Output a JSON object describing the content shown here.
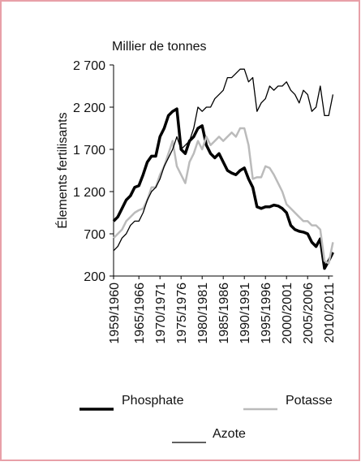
{
  "chart_data": {
    "type": "line",
    "y_label": "Millier de tonnes",
    "y_axis_title": "Élements fertilisants",
    "categories": [
      "1959/1960",
      null,
      null,
      null,
      null,
      null,
      "1965/1966",
      null,
      null,
      null,
      null,
      "1970/1971",
      null,
      null,
      null,
      null,
      "1975/1976",
      null,
      null,
      null,
      null,
      "1980/1981",
      null,
      null,
      null,
      null,
      "1985/1986",
      null,
      null,
      null,
      null,
      "1990/1991",
      null,
      null,
      null,
      null,
      "1995/1996",
      null,
      null,
      null,
      null,
      "2000/2001",
      null,
      null,
      null,
      null,
      "2005/2006",
      null,
      null,
      null,
      null,
      "2010/2011",
      null
    ],
    "series": [
      {
        "name": "Phosphate",
        "color": "#000000",
        "values": [
          850,
          900,
          1000,
          1100,
          1150,
          1250,
          1270,
          1400,
          1550,
          1620,
          1620,
          1850,
          1950,
          2100,
          2150,
          2180,
          1700,
          1650,
          1800,
          1850,
          1950,
          1980,
          1750,
          1650,
          1600,
          1650,
          1550,
          1450,
          1420,
          1400,
          1450,
          1480,
          1350,
          1250,
          1020,
          1000,
          1020,
          1020,
          1040,
          1030,
          1000,
          950,
          800,
          750,
          730,
          720,
          700,
          600,
          550,
          640,
          290,
          380,
          480
        ]
      },
      {
        "name": "Potasse",
        "color": "#bbbbbb",
        "values": [
          650,
          700,
          750,
          850,
          900,
          950,
          980,
          1000,
          1100,
          1250,
          1250,
          1400,
          1500,
          1650,
          1800,
          1500,
          1400,
          1300,
          1550,
          1650,
          1800,
          1700,
          1850,
          1750,
          1800,
          1850,
          1800,
          1850,
          1900,
          1850,
          1950,
          1950,
          1750,
          1350,
          1370,
          1370,
          1500,
          1480,
          1400,
          1300,
          1200,
          1050,
          1000,
          950,
          900,
          850,
          850,
          800,
          800,
          750,
          380,
          350,
          600
        ]
      },
      {
        "name": "Azote",
        "color": "#000000",
        "values": [
          500,
          550,
          650,
          700,
          800,
          850,
          850,
          950,
          1100,
          1200,
          1250,
          1350,
          1500,
          1600,
          1700,
          1850,
          1700,
          1750,
          1800,
          1950,
          2200,
          2150,
          2200,
          2200,
          2300,
          2350,
          2400,
          2550,
          2550,
          2600,
          2650,
          2650,
          2500,
          2550,
          2150,
          2250,
          2300,
          2450,
          2400,
          2450,
          2450,
          2500,
          2400,
          2350,
          2250,
          2400,
          2350,
          2150,
          2200,
          2450,
          2100,
          2100,
          2350
        ]
      }
    ],
    "line_widths": [
      3.5,
      2.5,
      1.3
    ],
    "ylim": [
      200,
      2700
    ],
    "yticks": [
      200,
      700,
      {
        "value": 1200,
        "label": "1 200"
      },
      {
        "value": 1700,
        "label": "1 700"
      },
      {
        "value": 2200,
        "label": "2 200"
      },
      {
        "value": 2700,
        "label": "2 700"
      }
    ]
  }
}
